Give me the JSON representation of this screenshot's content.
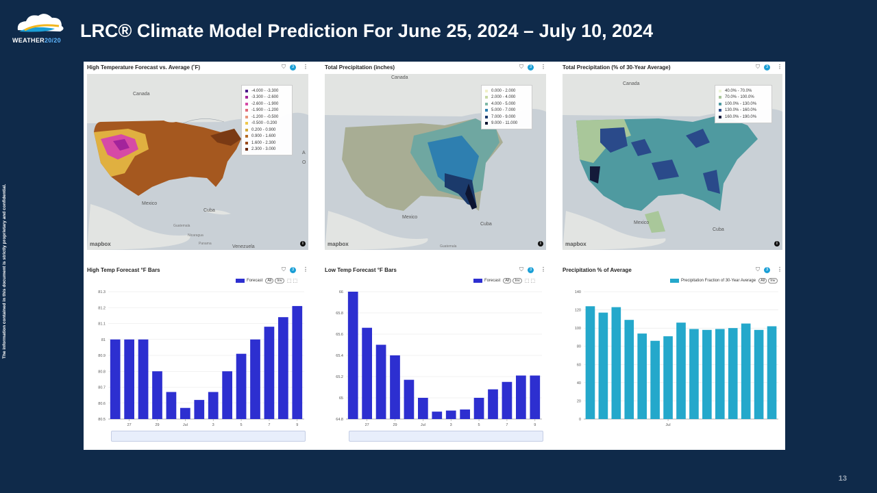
{
  "header": {
    "logo_text_1": "WEATHER",
    "logo_text_2": "20/20",
    "title": "LRC® Climate Model Prediction For June 25, 2024 – July 10, 2024",
    "side_note": "The information contained in this document is strictly proprietary and confidential.",
    "page_number": "13"
  },
  "colors": {
    "background": "#0f2a4a",
    "bar_blue": "#2d2fd0",
    "bar_teal": "#24a8cb",
    "badge": "#1a9fd6"
  },
  "controls": {
    "badge_count": "3",
    "filter_icon": "filter-icon",
    "more_icon": "more-vertical-icon"
  },
  "maps": [
    {
      "title": "High Temperature Forecast vs. Average (˚F)",
      "legend": [
        {
          "label": "-4.000 - -3.300",
          "color": "#4b1a8a"
        },
        {
          "label": "-3.300 - -2.600",
          "color": "#a3239b"
        },
        {
          "label": "-2.600 - -1.900",
          "color": "#d64aa6"
        },
        {
          "label": "-1.900 - -1.200",
          "color": "#e06b7a"
        },
        {
          "label": "-1.200 - -0.500",
          "color": "#e8957a"
        },
        {
          "label": "-0.500 - 0.200",
          "color": "#f0c74a"
        },
        {
          "label": "0.200 - 0.900",
          "color": "#d4a93a"
        },
        {
          "label": "0.900 - 1.600",
          "color": "#b56a22"
        },
        {
          "label": "1.600 - 2.300",
          "color": "#9a4a1a"
        },
        {
          "label": "2.300 - 3.000",
          "color": "#6a2a10"
        }
      ],
      "labels": {
        "canada": "Canada",
        "mexico": "Mexico",
        "cuba": "Cuba",
        "guatemala": "Guatemala",
        "nicaragua": "Nicaragua",
        "panama": "Panama",
        "venezuela": "Venezuela",
        "atl_a": "A",
        "atl_o": "O"
      }
    },
    {
      "title": "Total Precipitation (inches)",
      "legend": [
        {
          "label": "0.000 - 2.000",
          "color": "#f2f0c8"
        },
        {
          "label": "2.000 - 4.000",
          "color": "#c7d9a4"
        },
        {
          "label": "4.000 - 5.000",
          "color": "#7fb8a6"
        },
        {
          "label": "5.000 - 7.000",
          "color": "#2e7fb0"
        },
        {
          "label": "7.000 - 9.000",
          "color": "#1b3a6b"
        },
        {
          "label": "9.000 - 11.000",
          "color": "#0d1530"
        }
      ],
      "labels": {
        "canada": "Canada",
        "mexico": "Mexico",
        "cuba": "Cuba",
        "guatemala": "Guatemala"
      }
    },
    {
      "title": "Total Precipitation (% of 30-Year Average)",
      "legend": [
        {
          "label": "40.0% - 70.0%",
          "color": "#eef5d8"
        },
        {
          "label": "70.0% - 100.0%",
          "color": "#a9c79a"
        },
        {
          "label": "100.0% - 130.0%",
          "color": "#4f9aa0"
        },
        {
          "label": "130.0% - 160.0%",
          "color": "#2a4a8a"
        },
        {
          "label": "160.0% - 190.0%",
          "color": "#141a3a"
        }
      ],
      "labels": {
        "canada": "Canada",
        "mexico": "Mexico",
        "cuba": "Cuba"
      }
    }
  ],
  "mapbox_label": "mapbox",
  "info_label": "i",
  "chart_data": [
    {
      "type": "bar",
      "title": "High Temp Forecast °F Bars",
      "legend_label": "Forecast",
      "ylim": [
        80.5,
        81.3
      ],
      "yticks": [
        "80.5",
        "80.6",
        "80.7",
        "80.8",
        "80.9",
        "81",
        "81.1",
        "81.2",
        "81.3"
      ],
      "xticks": [
        {
          "index": 1,
          "label": "27"
        },
        {
          "index": 3,
          "label": "29"
        },
        {
          "index": 5,
          "label": "Jul"
        },
        {
          "index": 7,
          "label": "3"
        },
        {
          "index": 9,
          "label": "5"
        },
        {
          "index": 11,
          "label": "7"
        },
        {
          "index": 13,
          "label": "9"
        }
      ],
      "values": [
        81.0,
        81.0,
        81.0,
        80.8,
        80.67,
        80.57,
        80.62,
        80.67,
        80.8,
        80.91,
        81.0,
        81.08,
        81.14,
        81.21
      ],
      "color": "#2d2fd0"
    },
    {
      "type": "bar",
      "title": "Low Temp Forecast °F Bars",
      "legend_label": "Forecast",
      "ylim": [
        64.8,
        66.0
      ],
      "yticks": [
        "64.8",
        "65",
        "65.2",
        "65.4",
        "65.6",
        "65.8",
        "66"
      ],
      "xticks": [
        {
          "index": 1,
          "label": "27"
        },
        {
          "index": 3,
          "label": "29"
        },
        {
          "index": 5,
          "label": "Jul"
        },
        {
          "index": 7,
          "label": "3"
        },
        {
          "index": 9,
          "label": "5"
        },
        {
          "index": 11,
          "label": "7"
        },
        {
          "index": 13,
          "label": "9"
        }
      ],
      "values": [
        66.0,
        65.66,
        65.5,
        65.4,
        65.17,
        65.0,
        64.87,
        64.88,
        64.89,
        65.0,
        65.08,
        65.15,
        65.21,
        65.21
      ],
      "color": "#2d2fd0"
    },
    {
      "type": "bar",
      "title": "Precipitation % of Average",
      "legend_label": "Precipitation Fraction of 30-Year Average",
      "ylim": [
        0,
        140
      ],
      "yticks": [
        "0",
        "20",
        "40",
        "60",
        "80",
        "100",
        "120",
        "140"
      ],
      "xticks": [
        {
          "index": 6,
          "label": "Jul"
        }
      ],
      "values": [
        124,
        117,
        123,
        109,
        94,
        86,
        91,
        106,
        99,
        98,
        99,
        100,
        105,
        98,
        102
      ],
      "color": "#24a8cb"
    }
  ],
  "chart_controls": {
    "all": "All",
    "inv": "Inv"
  }
}
